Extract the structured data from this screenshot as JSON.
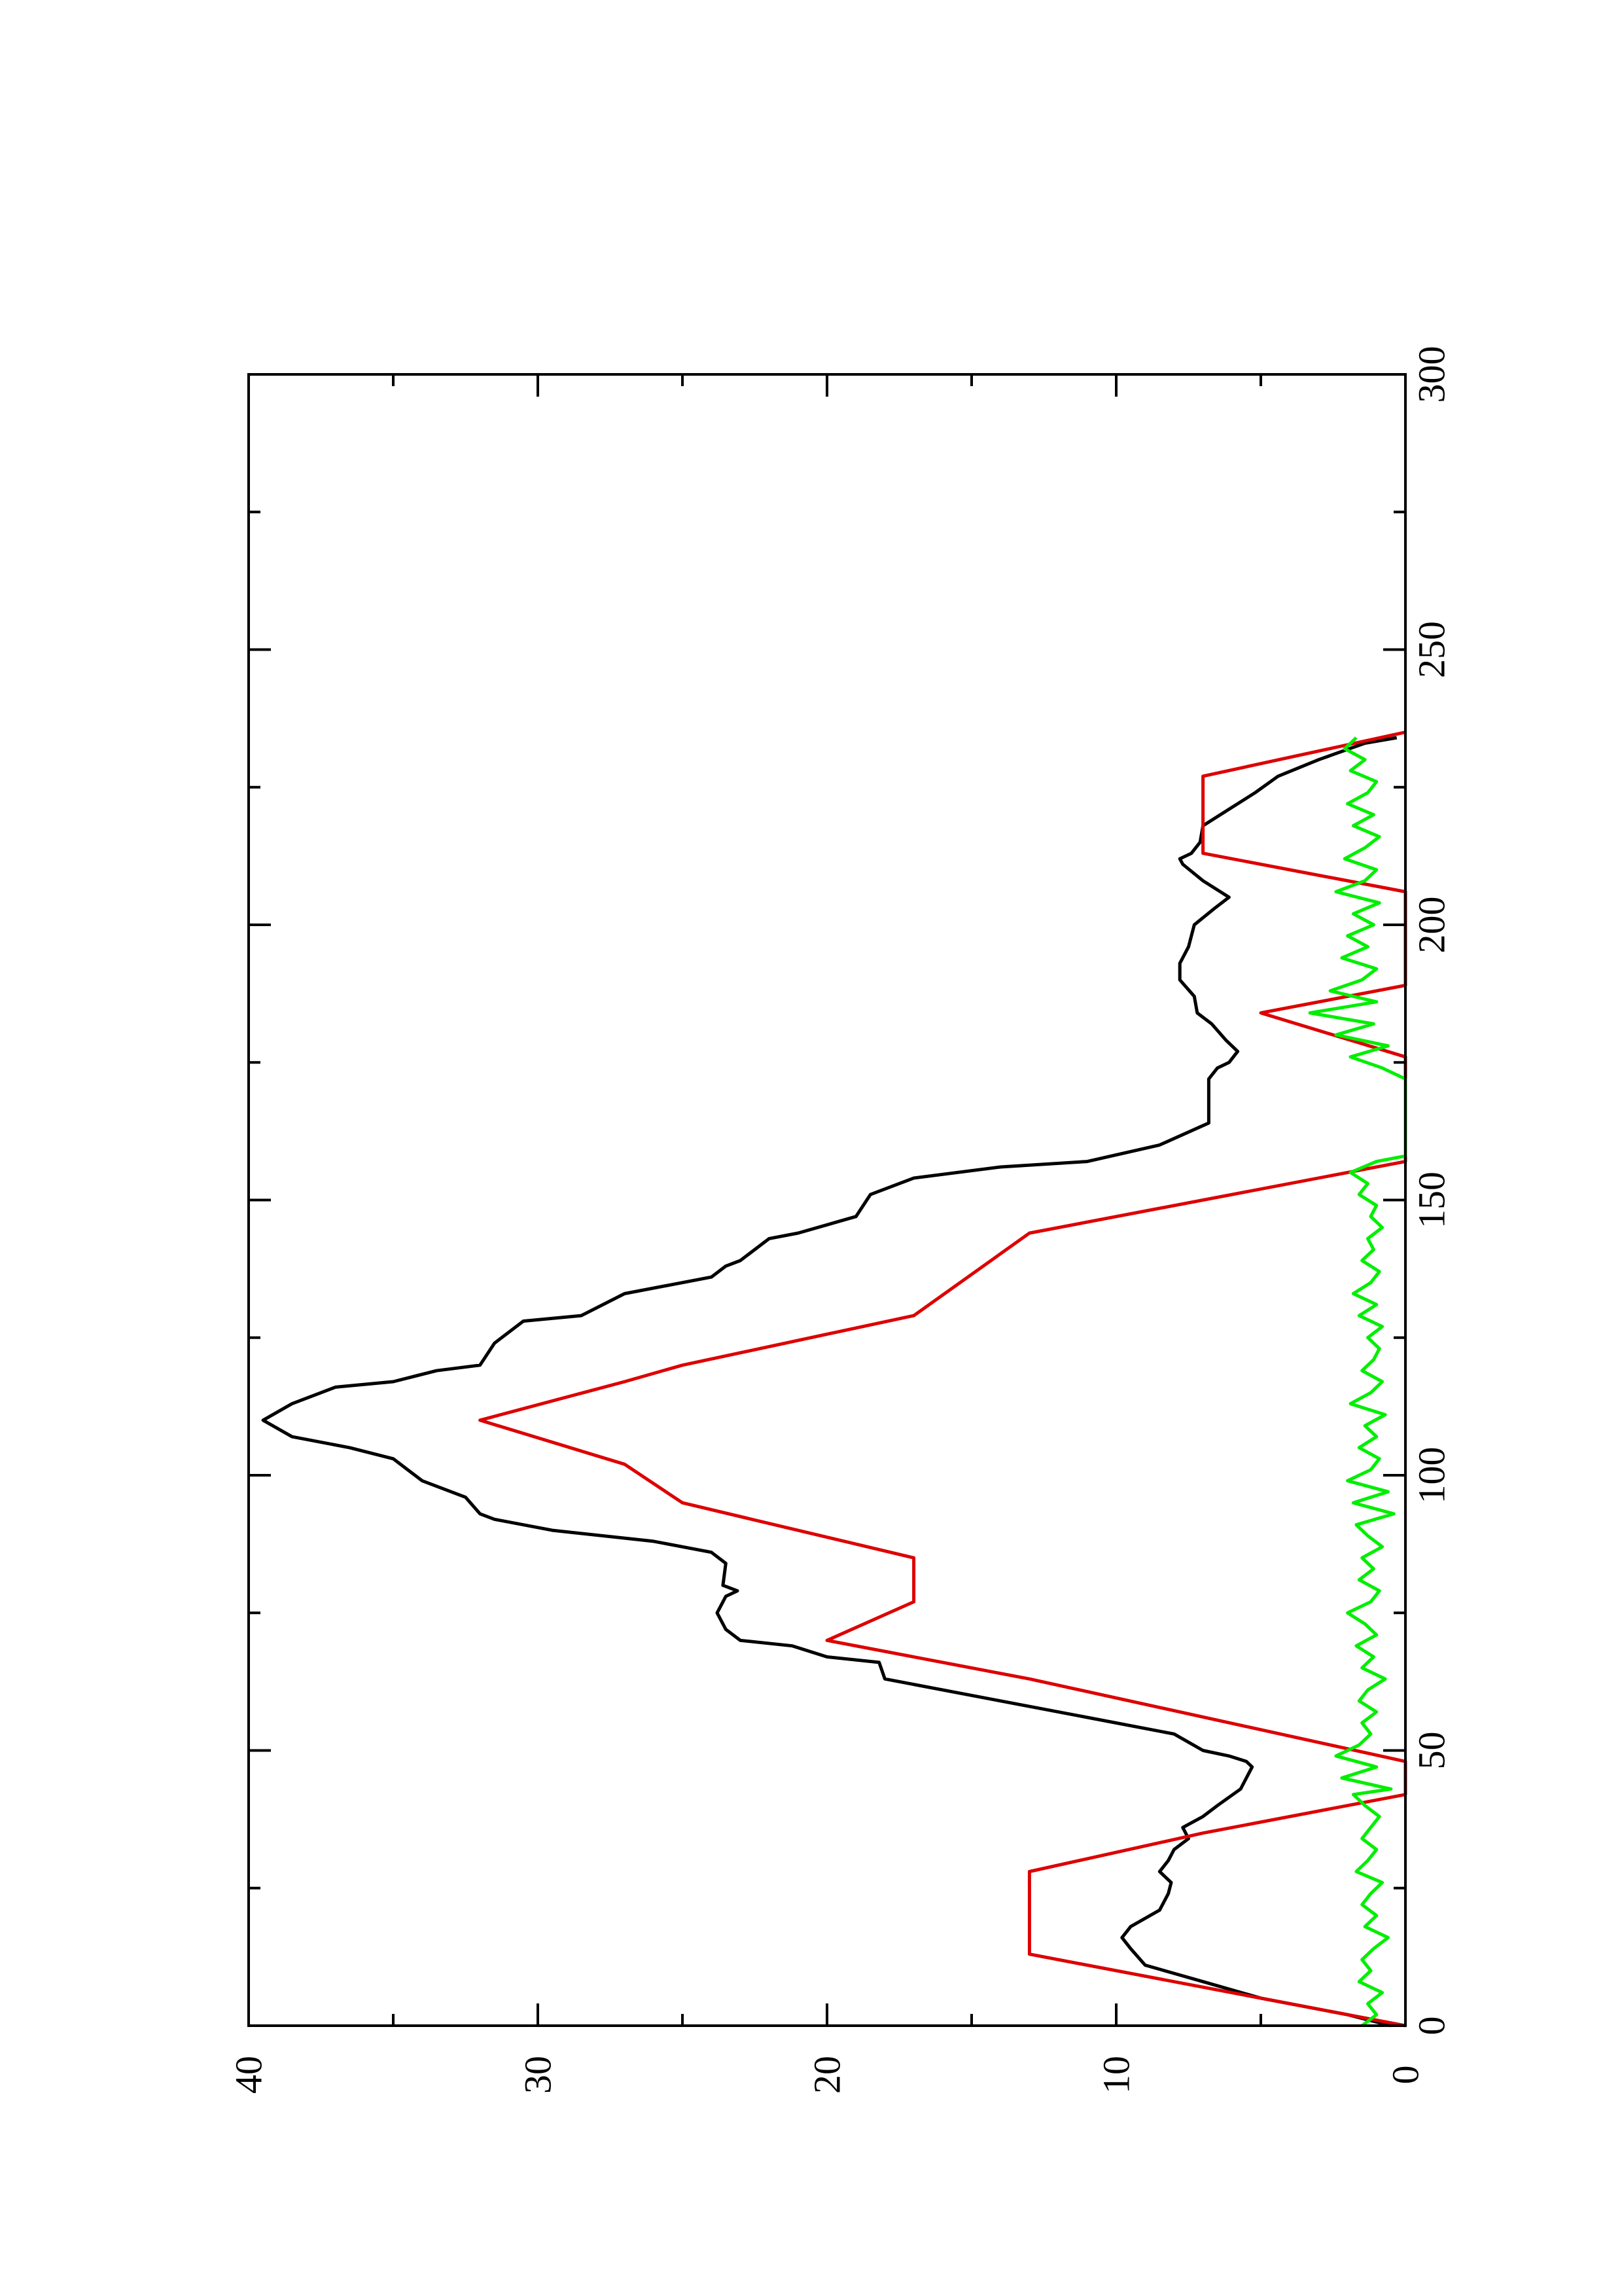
{
  "chart_data": {
    "type": "line",
    "title": "",
    "xlabel": "",
    "ylabel": "",
    "rotated": true,
    "xlim": [
      0,
      300
    ],
    "ylim": [
      0,
      40
    ],
    "x_ticks_major": [
      0,
      50,
      100,
      150,
      200,
      250,
      300
    ],
    "x_ticks_minor": [
      25,
      75,
      125,
      175,
      225,
      275
    ],
    "y_ticks_major": [
      0,
      10,
      20,
      30,
      40
    ],
    "y_ticks_minor": [
      5,
      15,
      25,
      35
    ],
    "x_tick_labels": [
      "0",
      "50",
      "100",
      "150",
      "200",
      "250",
      "300"
    ],
    "y_tick_labels": [
      "0",
      "10",
      "20",
      "30",
      "40"
    ],
    "grid": false,
    "series": [
      {
        "color": "#000000",
        "x": [
          0,
          2,
          5,
          8,
          11,
          14,
          16,
          18,
          21,
          24,
          26,
          28,
          30,
          32,
          34,
          36,
          38,
          40,
          43,
          45,
          47,
          48,
          49,
          50,
          53,
          56,
          59,
          62,
          63,
          66,
          67,
          69,
          70,
          72,
          75,
          78,
          79,
          80,
          84,
          86,
          88,
          90,
          92,
          93,
          96,
          97,
          99,
          101,
          103,
          105,
          107,
          110,
          113,
          116,
          117,
          119,
          120,
          124,
          128,
          129,
          133,
          136,
          138,
          139,
          143,
          144,
          147,
          151,
          154,
          156,
          157,
          160,
          164,
          169,
          172,
          174,
          175,
          177,
          179,
          182,
          184,
          187,
          190,
          193,
          196,
          200,
          203,
          205,
          208,
          211,
          212,
          213,
          215,
          218,
          221,
          224,
          227,
          230,
          233,
          234
        ],
        "y": [
          0.5,
          2,
          5,
          7,
          9,
          9.5,
          9.8,
          9.5,
          8.5,
          8.2,
          8.1,
          8.5,
          8.2,
          8,
          7.5,
          7.7,
          7,
          6.5,
          5.7,
          5.5,
          5.3,
          5.5,
          6.1,
          7,
          8,
          11,
          14,
          17,
          18,
          18.2,
          20,
          21.2,
          23,
          23.5,
          23.8,
          23.5,
          23.1,
          23.6,
          23.5,
          24,
          26,
          29.5,
          31.5,
          32,
          32.5,
          33,
          34,
          34.5,
          35,
          36.5,
          38.5,
          39.5,
          38.5,
          37,
          35,
          33.5,
          32,
          31.5,
          30.5,
          28.5,
          27,
          24,
          23.5,
          23,
          22,
          21,
          19,
          18.5,
          17,
          14,
          11,
          8.5,
          6.8,
          6.8,
          6.8,
          6.5,
          6.1,
          5.8,
          6.2,
          6.7,
          7.2,
          7.3,
          7.8,
          7.8,
          7.5,
          7.3,
          6.6,
          6.1,
          7,
          7.7,
          7.8,
          7.4,
          7.1,
          7,
          6.1,
          5.2,
          4.4,
          3,
          1.4,
          0.3
        ]
      },
      {
        "color": "#dd0000",
        "x": [
          0,
          13,
          13,
          28,
          28,
          35,
          35,
          42,
          48,
          63,
          63,
          70,
          70,
          77,
          77,
          85,
          85,
          95,
          95,
          102,
          102,
          110,
          110,
          117,
          117,
          120,
          120,
          129,
          129,
          144,
          144,
          157,
          176,
          184,
          184,
          189,
          206,
          213,
          213,
          227,
          227,
          235
        ],
        "y": [
          0,
          13,
          13,
          13,
          13,
          7,
          7,
          0,
          0,
          13,
          13,
          20,
          20,
          17,
          17,
          17,
          17,
          25,
          25,
          27,
          27,
          32,
          32,
          27,
          27,
          25,
          25,
          17,
          17,
          13,
          13,
          0,
          0,
          5,
          5,
          0,
          0,
          7,
          7,
          7,
          7,
          0
        ]
      },
      {
        "color": "#00ee00",
        "x": [
          0,
          2,
          4,
          6,
          8,
          10,
          12,
          14,
          16,
          18,
          20,
          22,
          24,
          26,
          28,
          30,
          32,
          34,
          36,
          38,
          40,
          42,
          43,
          45,
          47,
          49,
          51,
          53,
          55,
          57,
          59,
          61,
          63,
          65,
          67,
          69,
          71,
          73,
          75,
          77,
          79,
          81,
          83,
          85,
          87,
          89,
          91,
          93,
          95,
          97,
          99,
          101,
          103,
          105,
          107,
          109,
          111,
          113,
          115,
          117,
          119,
          121,
          123,
          125,
          127,
          129,
          131,
          133,
          135,
          137,
          139,
          141,
          143,
          145,
          147,
          149,
          151,
          153,
          155,
          157,
          158,
          160,
          162,
          164,
          166,
          168,
          170,
          172,
          174,
          176,
          178,
          180,
          182,
          184,
          186,
          188,
          190,
          192,
          194,
          196,
          198,
          200,
          202,
          204,
          206,
          208,
          210,
          212,
          214,
          216,
          218,
          220,
          222,
          224,
          226,
          228,
          230,
          232,
          234
        ],
        "y": [
          1.5,
          1.0,
          1.3,
          0.8,
          1.6,
          1.2,
          1.5,
          1.1,
          0.6,
          1.4,
          1.0,
          1.5,
          1.2,
          0.8,
          1.7,
          1.3,
          1.0,
          1.5,
          1.2,
          0.9,
          1.4,
          1.8,
          0.5,
          2.2,
          1.0,
          2.4,
          1.6,
          1.2,
          1.5,
          1.0,
          1.6,
          1.3,
          0.7,
          1.5,
          1.1,
          1.7,
          1.0,
          1.4,
          2.0,
          1.2,
          0.9,
          1.6,
          1.1,
          1.5,
          0.8,
          1.3,
          1.7,
          0.4,
          1.8,
          0.6,
          2.0,
          1.2,
          0.9,
          1.6,
          1.0,
          1.4,
          0.7,
          1.9,
          1.2,
          0.8,
          1.5,
          1.1,
          0.9,
          1.3,
          0.8,
          1.6,
          1.0,
          1.8,
          1.2,
          0.9,
          1.5,
          1.1,
          1.3,
          0.8,
          1.2,
          1.0,
          1.6,
          1.3,
          1.9,
          1.0,
          0.0,
          0.0,
          0.0,
          0.0,
          0.0,
          0.0,
          0.0,
          0.0,
          0.8,
          1.9,
          0.6,
          2.4,
          1.1,
          3.3,
          1.0,
          2.6,
          1.5,
          1.0,
          2.2,
          1.3,
          2.0,
          1.1,
          1.8,
          0.9,
          2.4,
          1.4,
          1.0,
          2.1,
          1.4,
          0.9,
          1.8,
          1.1,
          2.0,
          1.3,
          1.0,
          1.9,
          1.4,
          2.1,
          1.7
        ]
      }
    ]
  }
}
